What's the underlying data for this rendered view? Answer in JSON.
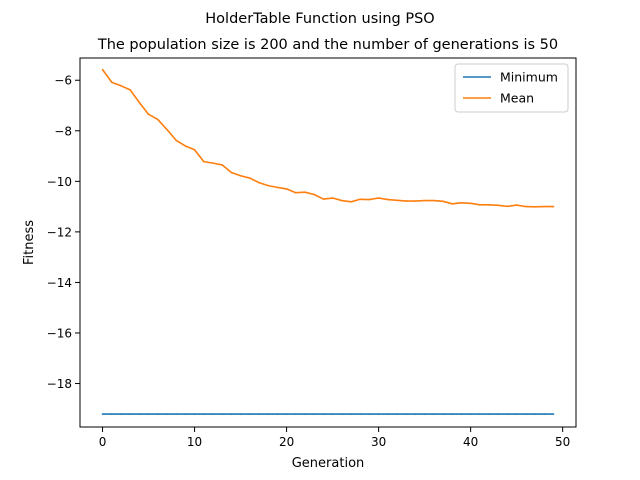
{
  "chart_data": {
    "type": "line",
    "title": "HolderTable Function using PSO",
    "subtitle": "The population size is 200 and the number of generations is 50",
    "xlabel": "Generation",
    "ylabel": "Fitness",
    "xlim": [
      -2.45,
      51.45
    ],
    "ylim": [
      -19.72,
      -5.12
    ],
    "xticks": [
      0,
      10,
      20,
      30,
      40,
      50
    ],
    "yticks": [
      -18,
      -16,
      -14,
      -12,
      -10,
      -8,
      -6
    ],
    "grid": false,
    "legend_position": "top-right",
    "x": [
      0,
      1,
      2,
      3,
      4,
      5,
      6,
      7,
      8,
      9,
      10,
      11,
      12,
      13,
      14,
      15,
      16,
      17,
      18,
      19,
      20,
      21,
      22,
      23,
      24,
      25,
      26,
      27,
      28,
      29,
      30,
      31,
      32,
      33,
      34,
      35,
      36,
      37,
      38,
      39,
      40,
      41,
      42,
      43,
      44,
      45,
      46,
      47,
      48,
      49
    ],
    "series": [
      {
        "name": "Minimum",
        "color": "#1f77b4",
        "values": [
          -19.21,
          -19.21,
          -19.21,
          -19.21,
          -19.21,
          -19.21,
          -19.21,
          -19.21,
          -19.21,
          -19.21,
          -19.21,
          -19.21,
          -19.21,
          -19.21,
          -19.21,
          -19.21,
          -19.21,
          -19.21,
          -19.21,
          -19.21,
          -19.21,
          -19.21,
          -19.21,
          -19.21,
          -19.21,
          -19.21,
          -19.21,
          -19.21,
          -19.21,
          -19.21,
          -19.21,
          -19.21,
          -19.21,
          -19.21,
          -19.21,
          -19.21,
          -19.21,
          -19.21,
          -19.21,
          -19.21,
          -19.21,
          -19.21,
          -19.21,
          -19.21,
          -19.21,
          -19.21,
          -19.21,
          -19.21,
          -19.21,
          -19.21
        ]
      },
      {
        "name": "Mean",
        "color": "#ff7f0e",
        "values": [
          -5.58,
          -6.08,
          -6.22,
          -6.38,
          -6.88,
          -7.35,
          -7.55,
          -7.95,
          -8.38,
          -8.6,
          -8.75,
          -9.22,
          -9.28,
          -9.35,
          -9.65,
          -9.78,
          -9.87,
          -10.05,
          -10.17,
          -10.24,
          -10.3,
          -10.45,
          -10.43,
          -10.52,
          -10.7,
          -10.66,
          -10.76,
          -10.81,
          -10.71,
          -10.72,
          -10.66,
          -10.72,
          -10.75,
          -10.78,
          -10.78,
          -10.76,
          -10.76,
          -10.79,
          -10.89,
          -10.85,
          -10.87,
          -10.93,
          -10.93,
          -10.95,
          -10.99,
          -10.94,
          -11.0,
          -11.01,
          -11.0,
          -11.0
        ]
      }
    ]
  }
}
